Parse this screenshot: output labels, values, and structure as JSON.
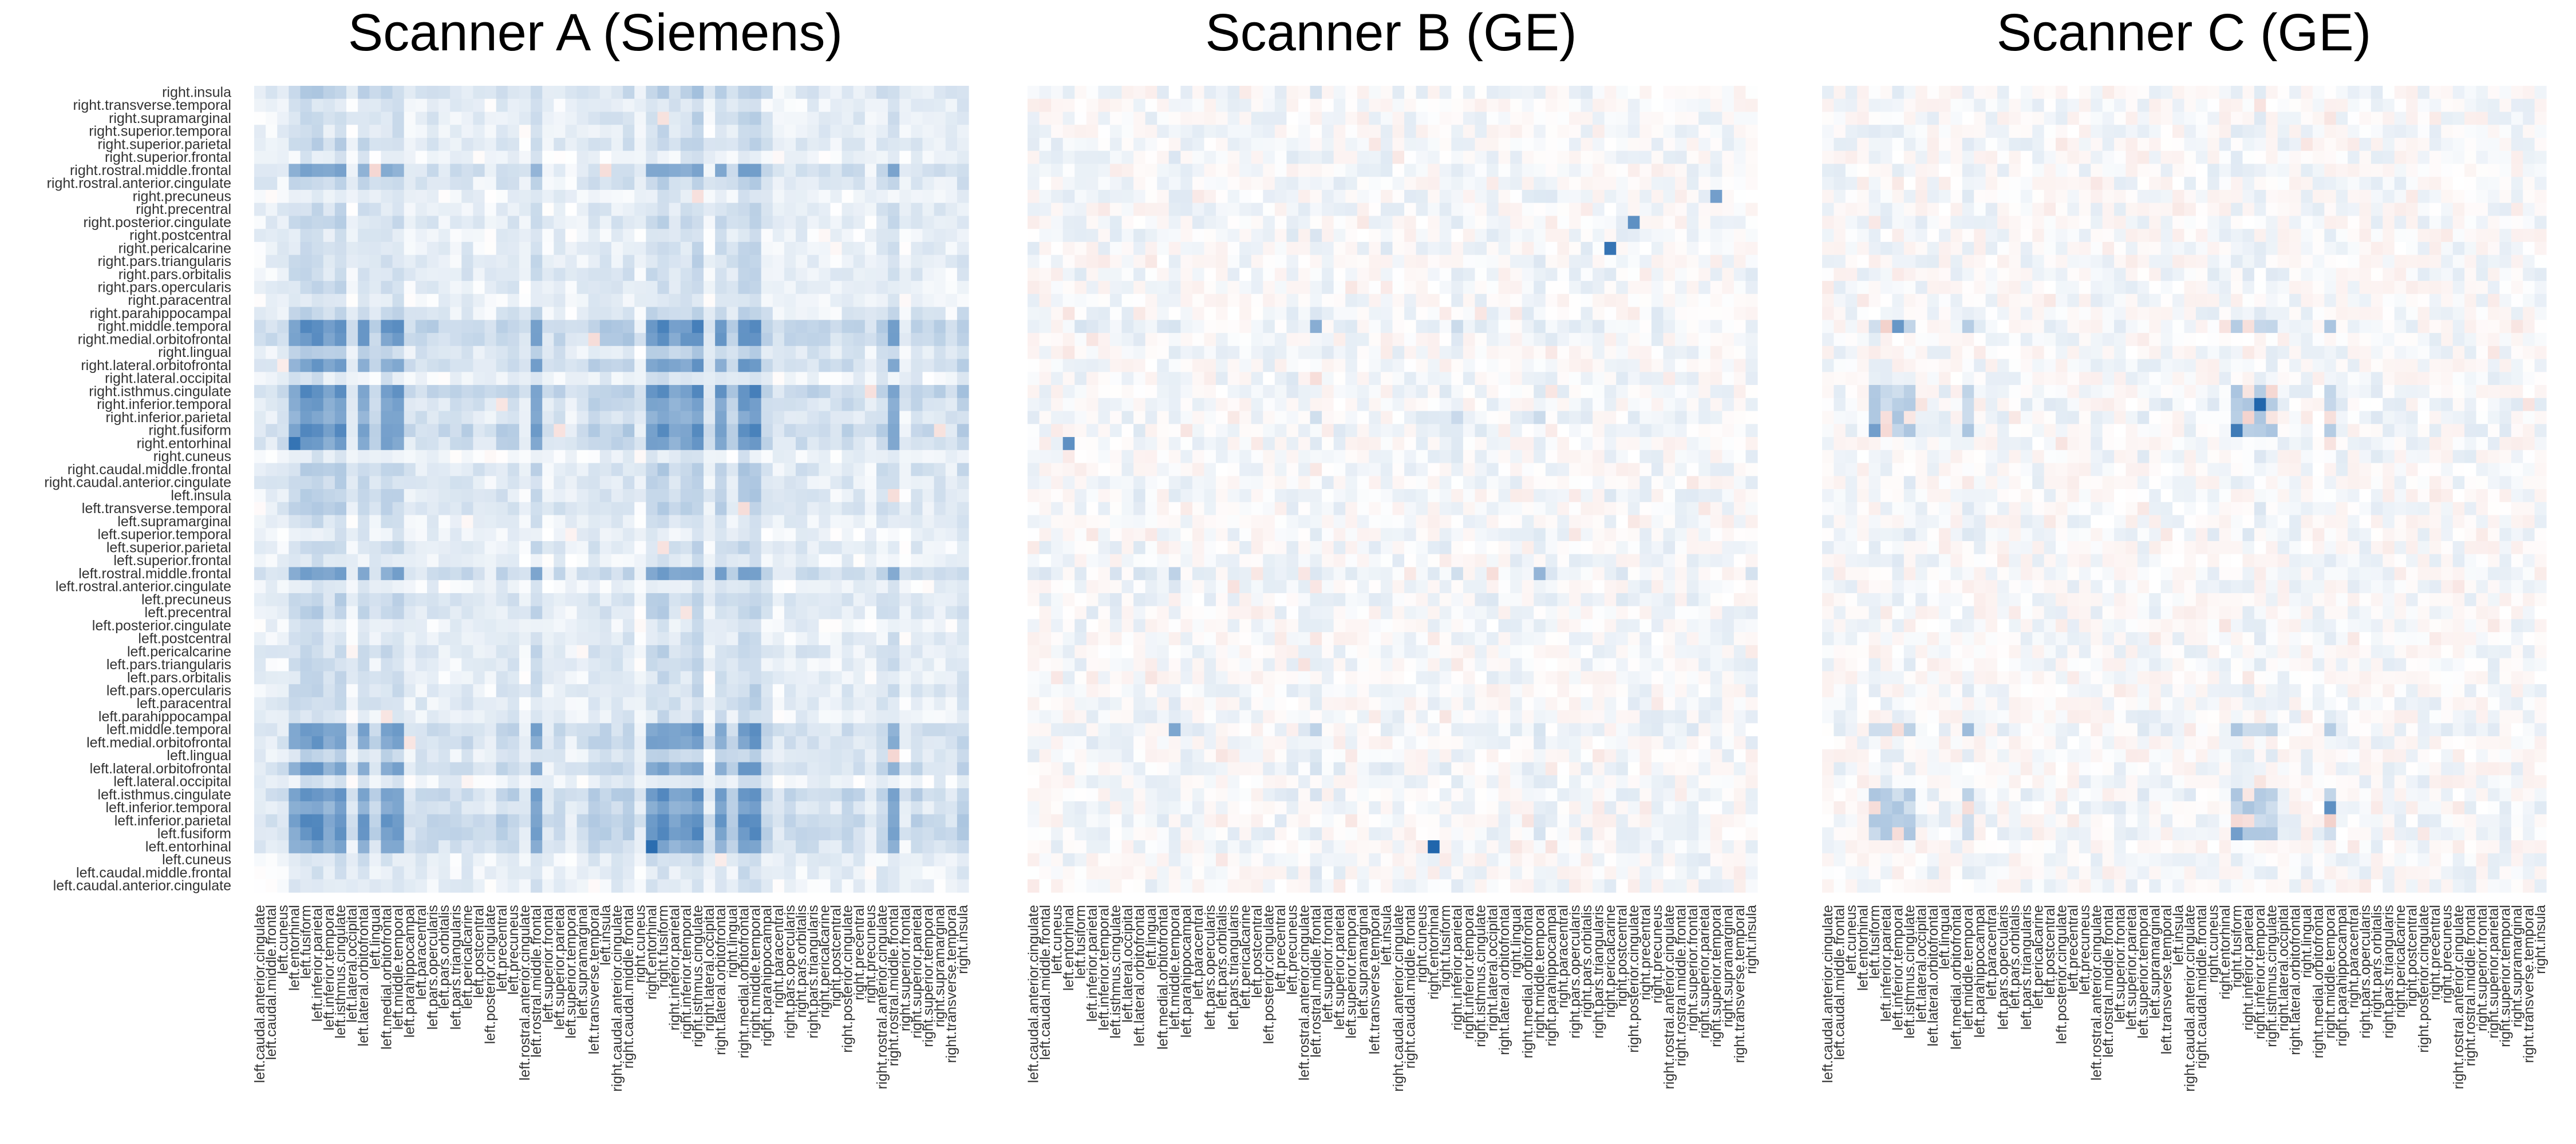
{
  "figure": {
    "panels": [
      {
        "title": "Scanner A (Siemens)",
        "accent": "#2166ac",
        "pattern": "dense-positive"
      },
      {
        "title": "Scanner B (GE)",
        "accent": "#2166ac",
        "pattern": "sparse-mixed"
      },
      {
        "title": "Scanner C (GE)",
        "accent": "#2166ac",
        "pattern": "block-mixed"
      }
    ],
    "colors": {
      "negative": "#d6604d",
      "neutral": "#ffffff",
      "positive": "#2166ac"
    }
  },
  "chart_data": [
    {
      "type": "heatmap",
      "title": "Scanner A (Siemens)",
      "labels": [
        "left.caudal.anterior.cingulate",
        "left.caudal.middle.frontal",
        "left.cuneus",
        "left.entorhinal",
        "left.fusiform",
        "left.inferior.parietal",
        "left.inferior.temporal",
        "left.isthmus.cingulate",
        "left.lateral.occipital",
        "left.lateral.orbitofrontal",
        "left.lingual",
        "left.medial.orbitofrontal",
        "left.middle.temporal",
        "left.parahippocampal",
        "left.paracentral",
        "left.pars.opercularis",
        "left.pars.orbitalis",
        "left.pars.triangularis",
        "left.pericalcarine",
        "left.postcentral",
        "left.posterior.cingulate",
        "left.precentral",
        "left.precuneus",
        "left.rostral.anterior.cingulate",
        "left.rostral.middle.frontal",
        "left.superior.frontal",
        "left.superior.parietal",
        "left.superior.temporal",
        "left.supramarginal",
        "left.transverse.temporal",
        "left.insula",
        "right.caudal.anterior.cingulate",
        "right.caudal.middle.frontal",
        "right.cuneus",
        "right.entorhinal",
        "right.fusiform",
        "right.inferior.parietal",
        "right.inferior.temporal",
        "right.isthmus.cingulate",
        "right.lateral.occipital",
        "right.lateral.orbitofrontal",
        "right.lingual",
        "right.medial.orbitofrontal",
        "right.middle.temporal",
        "right.parahippocampal",
        "right.paracentral",
        "right.pars.opercularis",
        "right.pars.orbitalis",
        "right.pars.triangularis",
        "right.pericalcarine",
        "right.postcentral",
        "right.posterior.cingulate",
        "right.precentral",
        "right.precuneus",
        "right.rostral.anterior.cingulate",
        "right.rostral.middle.frontal",
        "right.superior.frontal",
        "right.superior.parietal",
        "right.superior.temporal",
        "right.supramarginal",
        "right.transverse.temporal",
        "right.insula"
      ],
      "ylabels_top_to_bottom": true,
      "ylabels": [
        "right.insula",
        "right.transverse.temporal",
        "right.supramarginal",
        "right.superior.temporal",
        "right.superior.parietal",
        "right.superior.frontal",
        "right.rostral.middle.frontal",
        "right.rostral.anterior.cingulate",
        "right.precuneus",
        "right.precentral",
        "right.posterior.cingulate",
        "right.postcentral",
        "right.pericalcarine",
        "right.pars.triangularis",
        "right.pars.orbitalis",
        "right.pars.opercularis",
        "right.paracentral",
        "right.parahippocampal",
        "right.middle.temporal",
        "right.medial.orbitofrontal",
        "right.lingual",
        "right.lateral.orbitofrontal",
        "right.lateral.occipital",
        "right.isthmus.cingulate",
        "right.inferior.temporal",
        "right.inferior.parietal",
        "right.fusiform",
        "right.entorhinal",
        "right.cuneus",
        "right.caudal.middle.frontal",
        "right.caudal.anterior.cingulate",
        "left.insula",
        "left.transverse.temporal",
        "left.supramarginal",
        "left.superior.temporal",
        "left.superior.parietal",
        "left.superior.frontal",
        "left.rostral.middle.frontal",
        "left.rostral.anterior.cingulate",
        "left.precuneus",
        "left.precentral",
        "left.posterior.cingulate",
        "left.postcentral",
        "left.pericalcarine",
        "left.pars.triangularis",
        "left.pars.orbitalis",
        "left.pars.opercularis",
        "left.paracentral",
        "left.parahippocampal",
        "left.middle.temporal",
        "left.medial.orbitofrontal",
        "left.lingual",
        "left.lateral.orbitofrontal",
        "left.lateral.occipital",
        "left.isthmus.cingulate",
        "left.inferior.temporal",
        "left.inferior.parietal",
        "left.fusiform",
        "left.entorhinal",
        "left.cuneus",
        "left.caudal.middle.frontal",
        "left.caudal.anterior.cingulate"
      ],
      "value_range": [
        -1,
        1
      ],
      "seed": 11,
      "base": 0.18,
      "strong_rows": [
        3,
        4,
        5,
        6,
        7,
        9,
        11,
        12,
        24,
        34,
        35,
        36,
        37,
        38,
        40,
        42,
        43,
        55
      ],
      "strong_gain": 0.22,
      "hotspots": [
        [
          3,
          34,
          0.95
        ],
        [
          34,
          3,
          0.9
        ],
        [
          37,
          43,
          0.6
        ],
        [
          6,
          12,
          0.55
        ],
        [
          12,
          6,
          0.55
        ],
        [
          43,
          37,
          0.6
        ],
        [
          55,
          24,
          0.45
        ]
      ],
      "noise": 0.07,
      "neg_prob": 0.01
    },
    {
      "type": "heatmap",
      "title": "Scanner B (GE)",
      "labels_ref": 0,
      "value_range": [
        -1,
        1
      ],
      "seed": 23,
      "base": 0.05,
      "strong_rows": [
        12,
        24,
        36,
        43
      ],
      "strong_gain": 0.08,
      "hotspots": [
        [
          3,
          34,
          1.0
        ],
        [
          34,
          3,
          0.7
        ],
        [
          49,
          49,
          0.9
        ],
        [
          51,
          51,
          0.7
        ],
        [
          12,
          12,
          0.55
        ],
        [
          43,
          24,
          0.5
        ],
        [
          24,
          43,
          0.45
        ],
        [
          53,
          58,
          0.6
        ]
      ],
      "noise": 0.09,
      "neg_prob": 0.09
    },
    {
      "type": "heatmap",
      "title": "Scanner C (GE)",
      "labels_ref": 0,
      "value_range": [
        -1,
        1
      ],
      "seed": 37,
      "base": 0.03,
      "strong_rows": [
        4,
        5,
        6,
        7,
        12,
        35,
        36,
        37,
        38,
        43
      ],
      "strong_gain": 0.2,
      "hotspots": [
        [
          37,
          37,
          1.0
        ],
        [
          35,
          35,
          0.85
        ],
        [
          6,
          43,
          0.7
        ],
        [
          43,
          6,
          0.65
        ],
        [
          4,
          35,
          0.6
        ],
        [
          35,
          4,
          0.6
        ],
        [
          12,
          12,
          0.4
        ]
      ],
      "noise": 0.09,
      "neg_prob": 0.12
    }
  ]
}
